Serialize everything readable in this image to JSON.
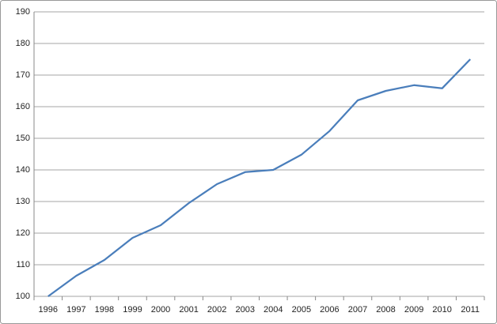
{
  "chart_data": {
    "type": "line",
    "categories": [
      "1996",
      "1997",
      "1998",
      "1999",
      "2000",
      "2001",
      "2002",
      "2003",
      "2004",
      "2005",
      "2006",
      "2007",
      "2008",
      "2009",
      "2010",
      "2011"
    ],
    "series": [
      {
        "color": "#4a7ebb",
        "values": [
          100,
          106.5,
          111.5,
          118.5,
          122.5,
          129.5,
          135.5,
          139.3,
          140,
          144.8,
          152.3,
          162,
          165,
          166.8,
          165.8,
          175
        ]
      }
    ],
    "ylim": [
      100,
      190
    ],
    "yticks": [
      100,
      110,
      120,
      130,
      140,
      150,
      160,
      170,
      180,
      190
    ],
    "grid": true
  }
}
